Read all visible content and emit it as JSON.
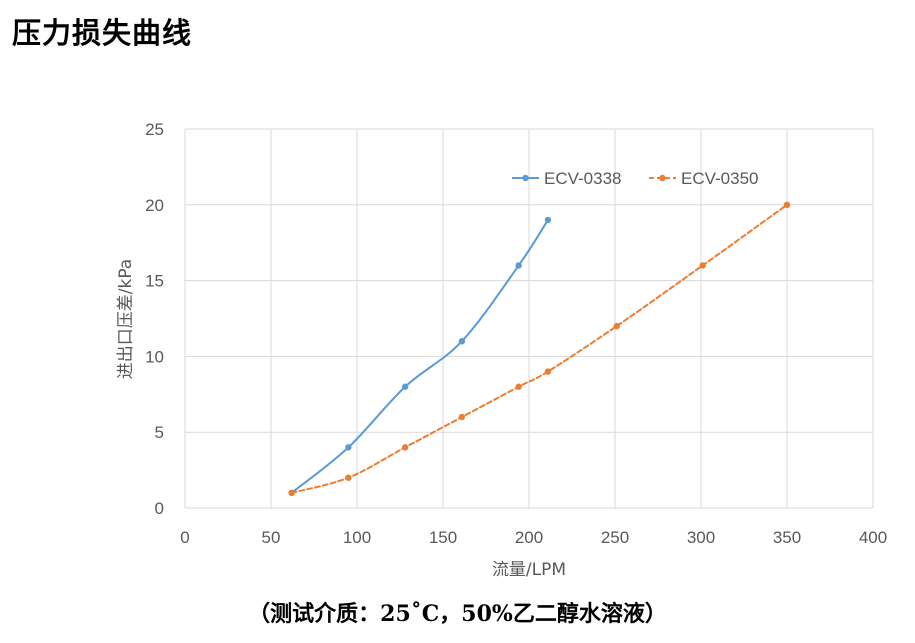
{
  "page_title": "压力损失曲线",
  "caption": "（测试介质：25˚C，50%乙二醇水溶液）",
  "chart_data": {
    "type": "line",
    "title": "",
    "xlabel": "流量/LPM",
    "ylabel": "进出口压差/kPa",
    "xlim": [
      0,
      400
    ],
    "ylim": [
      0,
      25
    ],
    "xticks": [
      0,
      50,
      100,
      150,
      200,
      250,
      300,
      350,
      400
    ],
    "yticks": [
      0,
      5,
      10,
      15,
      20,
      25
    ],
    "grid": true,
    "legend_position": "top-right",
    "series": [
      {
        "name": "ECV-0338",
        "color": "#5B9BD5",
        "line_style": "solid",
        "points": [
          [
            62,
            1
          ],
          [
            95,
            4
          ],
          [
            128,
            8
          ],
          [
            161,
            11
          ],
          [
            194,
            16
          ],
          [
            211,
            19
          ]
        ]
      },
      {
        "name": "ECV-0350",
        "color": "#ED7D31",
        "line_style": "dashed",
        "points": [
          [
            62,
            1
          ],
          [
            95,
            2
          ],
          [
            128,
            4
          ],
          [
            161,
            6
          ],
          [
            194,
            8
          ],
          [
            211,
            9
          ],
          [
            251,
            12
          ],
          [
            301,
            16
          ],
          [
            350,
            20
          ]
        ]
      }
    ]
  }
}
